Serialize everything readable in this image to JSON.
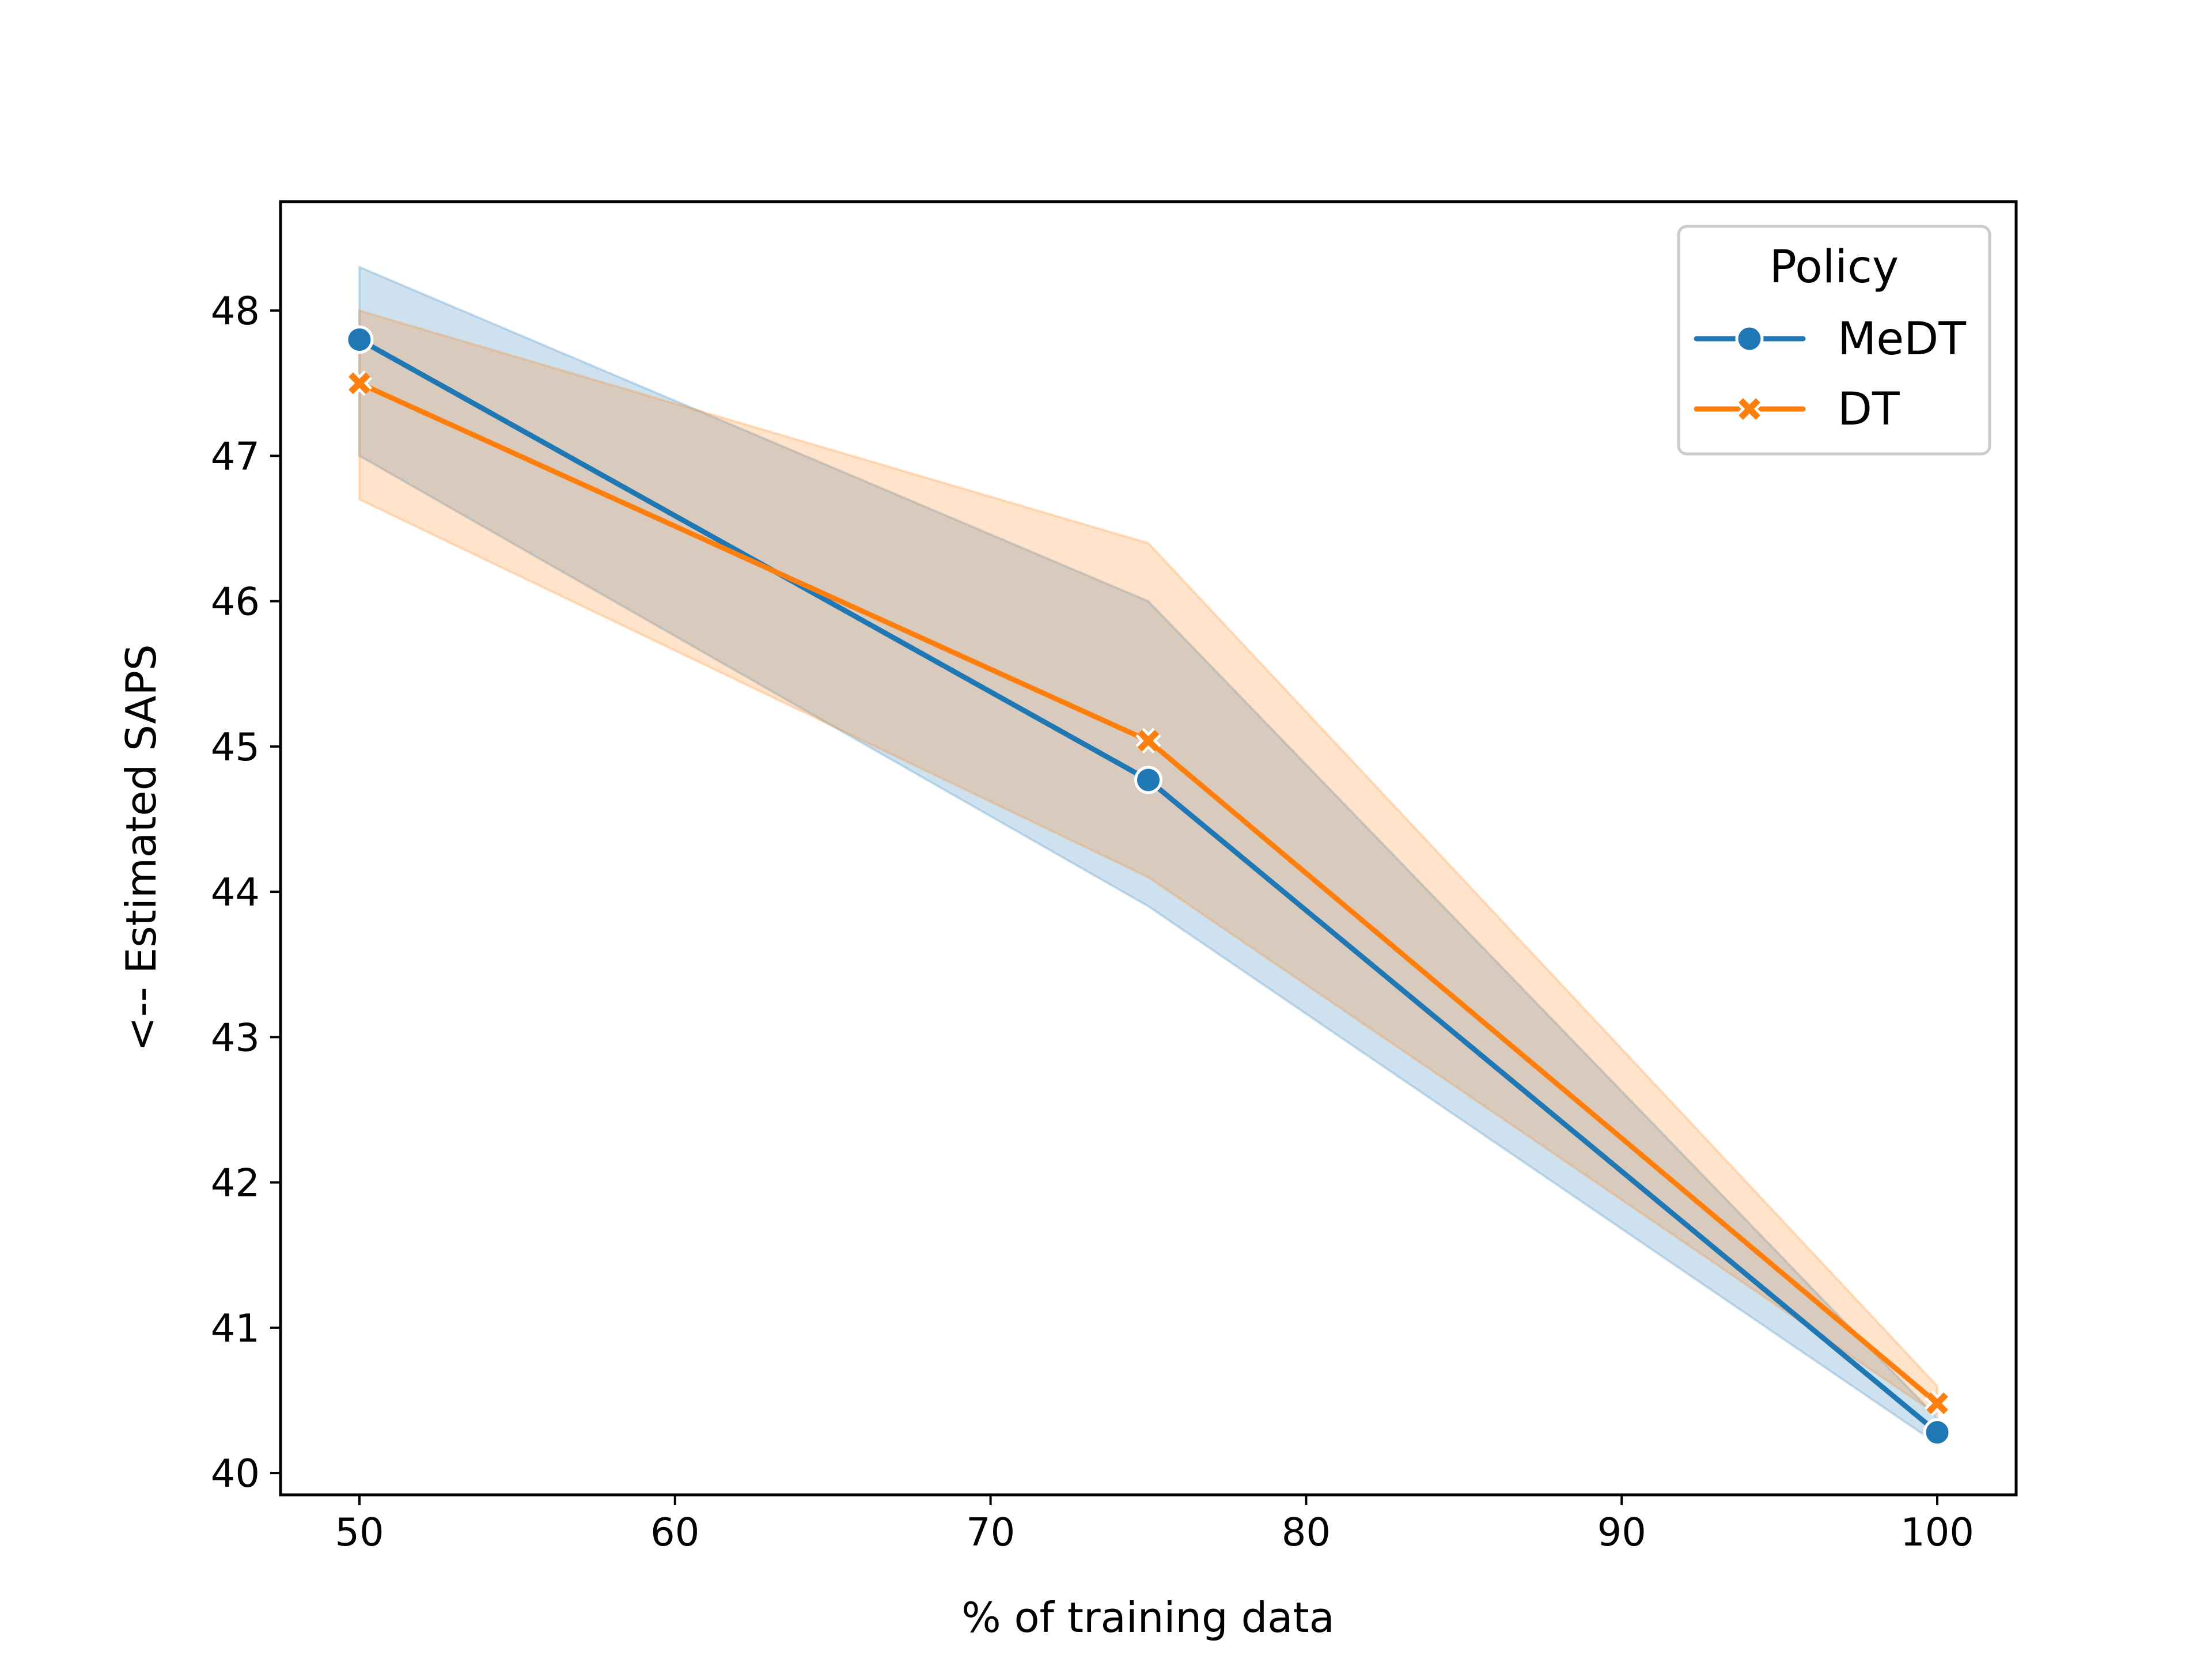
{
  "chart_data": {
    "type": "line",
    "title": "",
    "xlabel": "% of training data",
    "ylabel": "<-- Estimated SAPS",
    "x": [
      50,
      75,
      100
    ],
    "xlim": [
      47.5,
      102.5
    ],
    "ylim": [
      39.85,
      48.75
    ],
    "xticks": [
      50,
      60,
      70,
      80,
      90,
      100
    ],
    "yticks": [
      40,
      41,
      42,
      43,
      44,
      45,
      46,
      47,
      48
    ],
    "grid": false,
    "legend": {
      "title": "Policy",
      "placement": "top-right"
    },
    "series": [
      {
        "name": "MeDT",
        "color": "#1f77b4",
        "marker": "circle",
        "values": [
          47.8,
          44.77,
          40.28
        ],
        "ci_lower": [
          47.0,
          43.9,
          40.2
        ],
        "ci_upper": [
          48.3,
          46.0,
          40.38
        ]
      },
      {
        "name": "DT",
        "color": "#ff7f0e",
        "marker": "x",
        "values": [
          47.5,
          45.04,
          40.48
        ],
        "ci_lower": [
          46.7,
          44.1,
          40.4
        ],
        "ci_upper": [
          48.0,
          46.4,
          40.6
        ]
      }
    ]
  }
}
